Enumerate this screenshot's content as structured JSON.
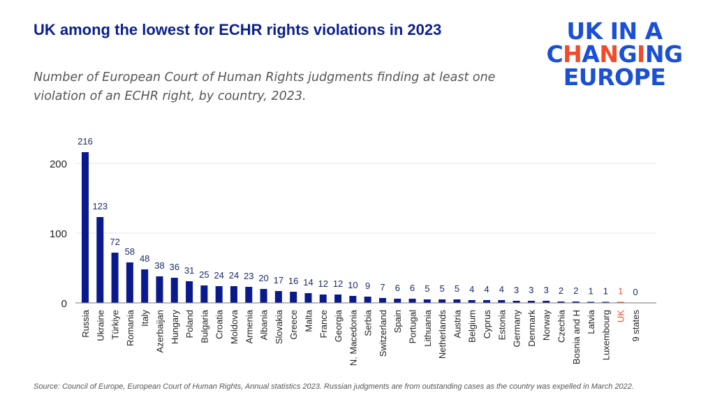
{
  "title": "UK among the lowest for ECHR rights violations in 2023",
  "subtitle": "Number of European Court of Human Rights judgments finding at least one violation of an ECHR right, by country, 2023.",
  "logo": {
    "line1": "UK IN A",
    "line2": "CHANGING",
    "line3": "EUROPE"
  },
  "source": "Source: Council of Europe, European Court of Human Rights, Annual statistics 2023. Russian judgments are from outstanding cases as the country was expelled in March 2022.",
  "colors": {
    "bar": "#0a1a8c",
    "highlight": "#f24b2a",
    "title": "#0a1f8f"
  },
  "chart_data": {
    "type": "bar",
    "categories": [
      "Russia",
      "Ukraine",
      "Türkiye",
      "Romania",
      "Italy",
      "Azerbaijan",
      "Hungary",
      "Poland",
      "Bulgaria",
      "Croatia",
      "Moldova",
      "Armenia",
      "Albania",
      "Slovakia",
      "Greece",
      "Malta",
      "France",
      "Georgia",
      "N. Macedonia",
      "Serbia",
      "Switzerland",
      "Spain",
      "Portugal",
      "Lithuania",
      "Netherlands",
      "Austria",
      "Belgium",
      "Cyprus",
      "Estonia",
      "Germany",
      "Denmark",
      "Norway",
      "Czechia",
      "Bosnia and H",
      "Latvia",
      "Luxembourg",
      "UK",
      "9 states"
    ],
    "values": [
      216,
      123,
      72,
      58,
      48,
      38,
      36,
      31,
      25,
      24,
      24,
      23,
      20,
      17,
      16,
      14,
      12,
      12,
      10,
      9,
      7,
      6,
      6,
      5,
      5,
      5,
      4,
      4,
      4,
      3,
      3,
      3,
      2,
      2,
      1,
      1,
      1,
      0
    ],
    "highlight": "UK",
    "ylim": [
      0,
      220
    ],
    "yticks": [
      0,
      100,
      200
    ],
    "grid": true,
    "data_labels": true,
    "xlabel": "",
    "ylabel": ""
  }
}
